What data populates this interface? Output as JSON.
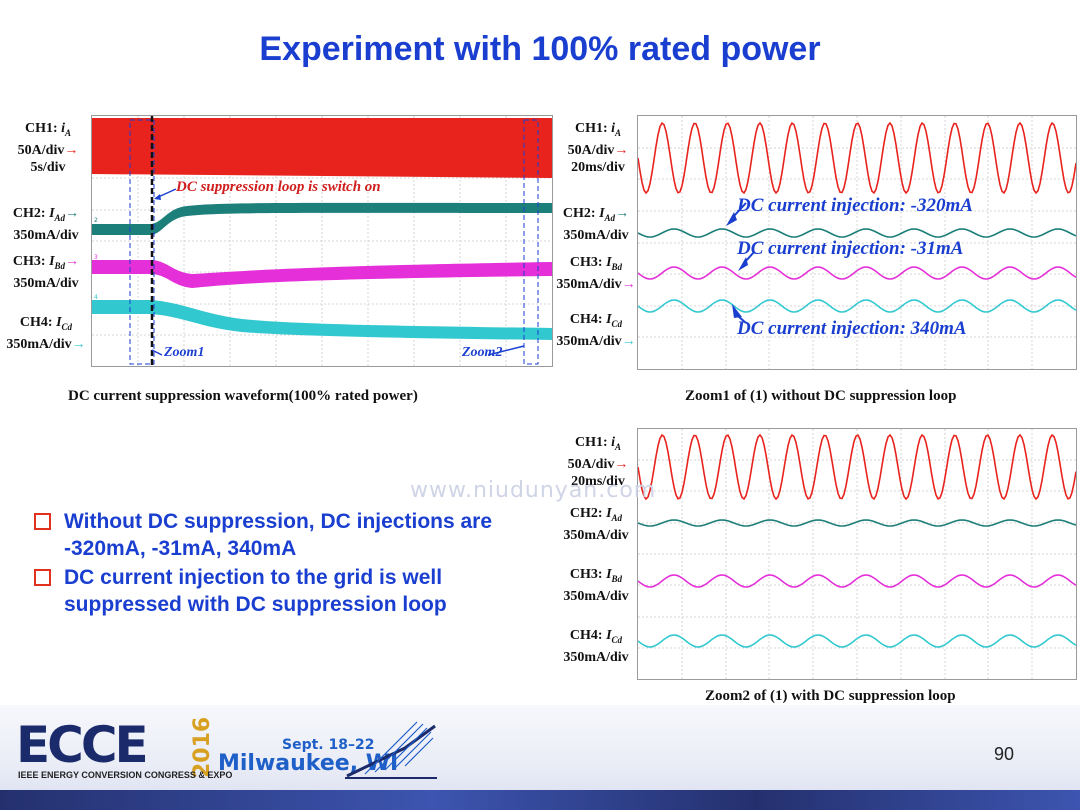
{
  "title": "Experiment with 100% rated power",
  "scope1": {
    "caption": "DC current suppression waveform(100% rated power)",
    "ch1": {
      "name": "CH1:",
      "sym": "i",
      "sub": "A",
      "scale": "50A/div",
      "time": "5s/div"
    },
    "ch2": {
      "name": "CH2:",
      "sym": "I",
      "sub": "Ad",
      "scale": "350mA/div"
    },
    "ch3": {
      "name": "CH3:",
      "sym": "I",
      "sub": "Bd",
      "scale": "350mA/div"
    },
    "ch4": {
      "name": "CH4:",
      "sym": "I",
      "sub": "Cd",
      "scale": "350mA/div"
    },
    "annot_switch": "DC suppression loop is switch on",
    "zoom1": "Zoom1",
    "zoom2": "Zoom2"
  },
  "scope2": {
    "caption": "Zoom1 of (1) without DC suppression loop",
    "ch1": {
      "name": "CH1:",
      "sym": "i",
      "sub": "A",
      "scale": "50A/div",
      "time": "20ms/div"
    },
    "ch2": {
      "name": "CH2:",
      "sym": "I",
      "sub": "Ad",
      "scale": "350mA/div"
    },
    "ch3": {
      "name": "CH3:",
      "sym": "I",
      "sub": "Bd",
      "scale": "350mA/div"
    },
    "ch4": {
      "name": "CH4:",
      "sym": "I",
      "sub": "Cd",
      "scale": "350mA/div"
    },
    "annot1": "DC current injection: -320mA",
    "annot2": "DC current injection: -31mA",
    "annot3": "DC current injection: 340mA"
  },
  "scope3": {
    "caption": "Zoom2 of (1) with DC suppression loop",
    "ch1": {
      "name": "CH1:",
      "sym": "i",
      "sub": "A",
      "scale": "50A/div",
      "time": "20ms/div"
    },
    "ch2": {
      "name": "CH2:",
      "sym": "I",
      "sub": "Ad",
      "scale": "350mA/div"
    },
    "ch3": {
      "name": "CH3:",
      "sym": "I",
      "sub": "Bd",
      "scale": "350mA/div"
    },
    "ch4": {
      "name": "CH4:",
      "sym": "I",
      "sub": "Cd",
      "scale": "350mA/div"
    }
  },
  "bullets": [
    "Without DC suppression, DC injections are -320mA, -31mA, 340mA",
    "DC current injection to the grid is well suppressed with DC suppression loop"
  ],
  "watermark": "www.niudunyan.com",
  "footer": {
    "logo": "ECCE",
    "year": "2016",
    "dates": "Sept. 18–22",
    "location": "Milwaukee, WI",
    "org": "IEEE ENERGY CONVERSION CONGRESS & EXPO",
    "page": "90"
  },
  "colors": {
    "accent": "#1a3fd0",
    "ch1": "#e8231e",
    "ch2": "#1d7f7a",
    "ch3": "#e52fd8",
    "ch4": "#32c8d0",
    "bullet_box": "#e0311e"
  }
}
